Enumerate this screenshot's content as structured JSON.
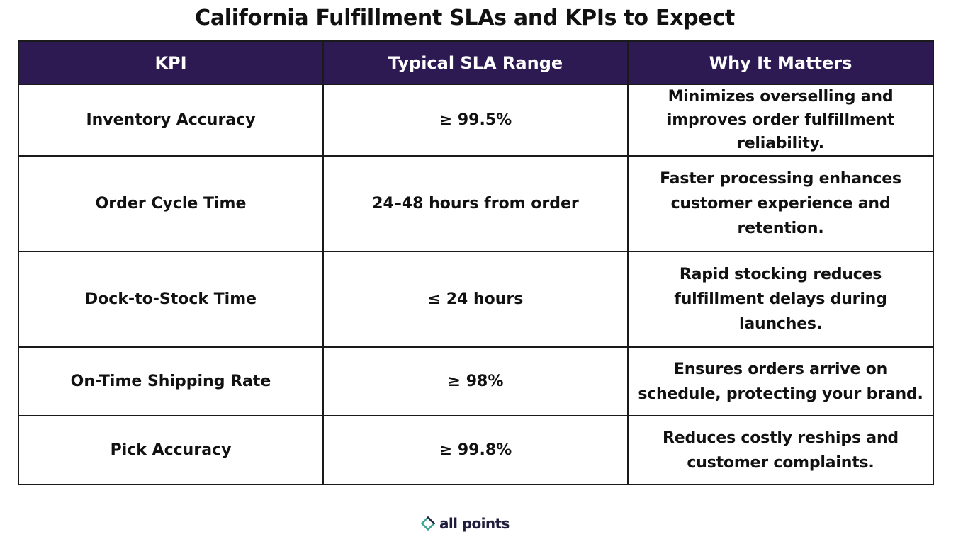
{
  "title": "California Fulfillment SLAs and KPIs to Expect",
  "table": {
    "headers": [
      "KPI",
      "Typical SLA Range",
      "Why It Matters"
    ],
    "rows": [
      {
        "kpi": "Inventory Accuracy",
        "sla": "≥ 99.5%",
        "why": "Minimizes overselling and improves order fulfillment reliability."
      },
      {
        "kpi": "Order Cycle Time",
        "sla": "24–48 hours from order",
        "why": "Faster processing enhances customer experience and retention."
      },
      {
        "kpi": "Dock-to-Stock Time",
        "sla": "≤ 24 hours",
        "why": "Rapid stocking reduces fulfillment delays during launches."
      },
      {
        "kpi": "On-Time Shipping Rate",
        "sla": "≥ 98%",
        "why": "Ensures orders arrive on schedule, protecting your brand."
      },
      {
        "kpi": "Pick Accuracy",
        "sla": "≥ 99.8%",
        "why": "Reduces costly reships and customer complaints."
      }
    ]
  },
  "logo": {
    "text": "all points",
    "icon": "diamond-ring-icon",
    "colors": {
      "header_bg": "#2d1a52",
      "icon_teal": "#3aa48f",
      "icon_navy": "#1e1e3c"
    }
  }
}
